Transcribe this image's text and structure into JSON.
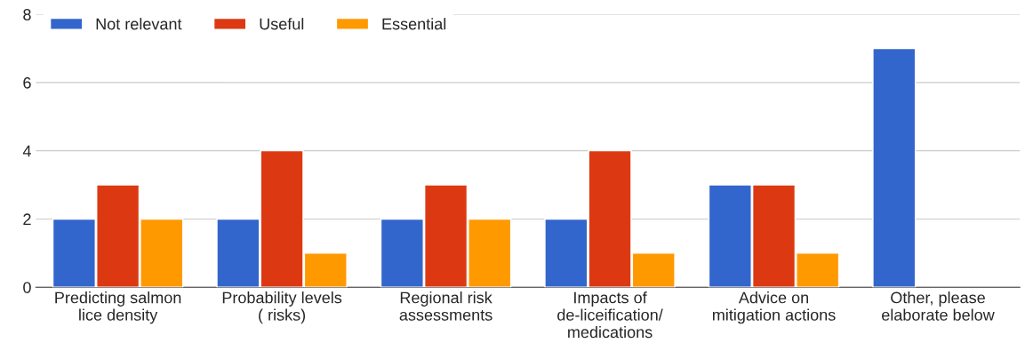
{
  "chart_data": {
    "type": "bar",
    "categories": [
      "Predicting salmon lice density",
      "Probability levels ( risks)",
      "Regional risk assessments",
      "Impacts of de-liceification/ medications",
      "Advice on mitigation actions",
      "Other, please elaborate below"
    ],
    "series": [
      {
        "name": "Not relevant",
        "color": "#3366cc",
        "values": [
          2,
          2,
          2,
          2,
          3,
          7
        ]
      },
      {
        "name": "Useful",
        "color": "#dc3912",
        "values": [
          3,
          4,
          3,
          4,
          3,
          null
        ]
      },
      {
        "name": "Essential",
        "color": "#ff9900",
        "values": [
          2,
          1,
          2,
          1,
          1,
          null
        ]
      }
    ],
    "ylim": [
      0,
      8
    ],
    "yticks": [
      0,
      2,
      4,
      6,
      8
    ],
    "grid": "y",
    "legend": "top left"
  }
}
